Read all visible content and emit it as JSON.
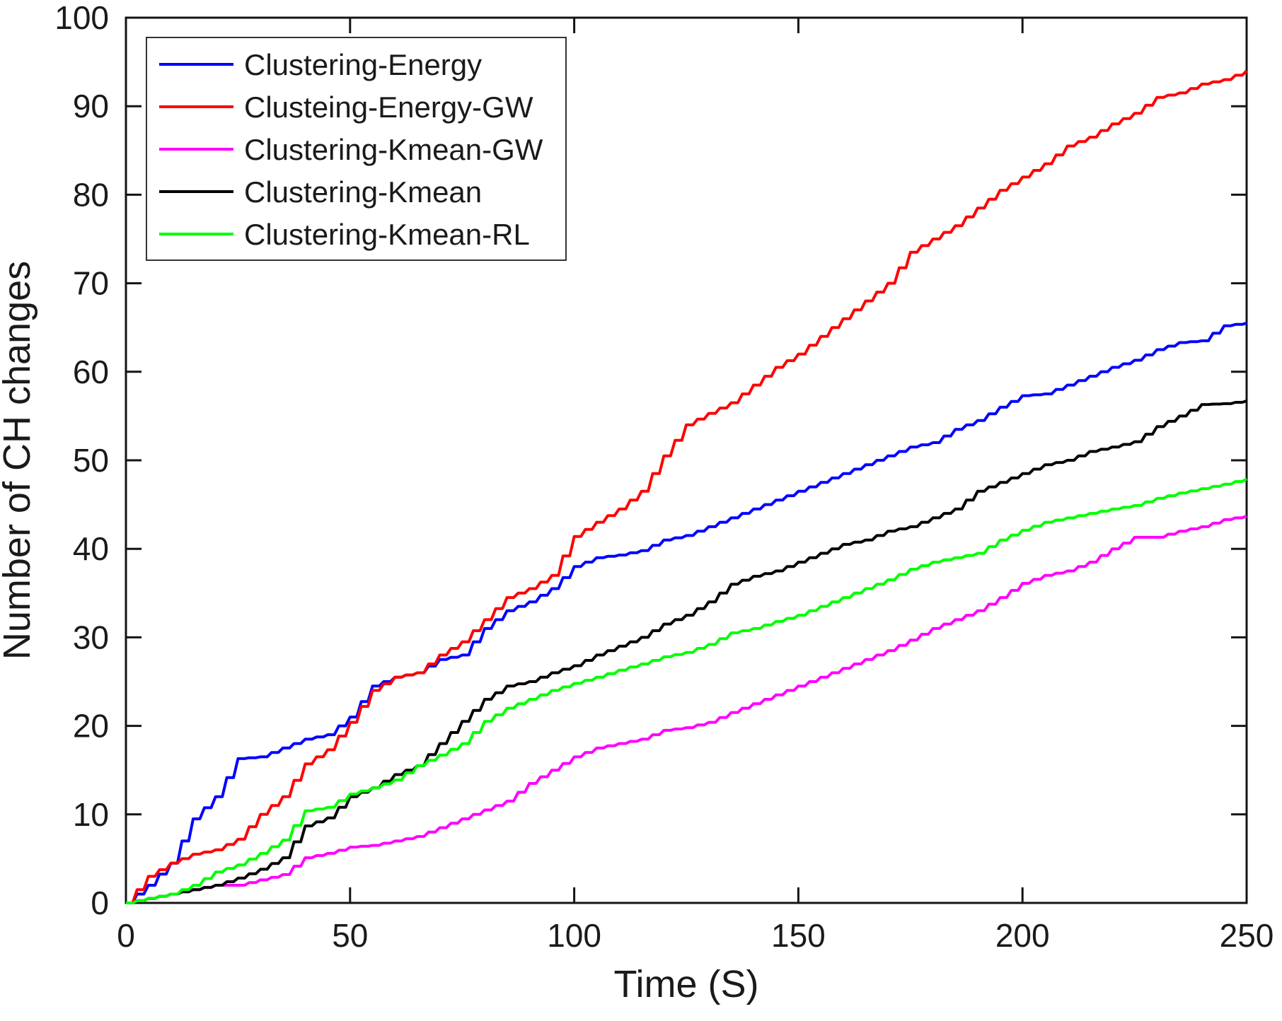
{
  "figure": {
    "background": "#ffffff",
    "axis_color": "#141414",
    "text_color": "#1a1a1a"
  },
  "chart_data": {
    "type": "line",
    "title": "",
    "xlabel": "Time (S)",
    "ylabel": "Number of CH changes",
    "xlim": [
      0,
      250
    ],
    "ylim": [
      0,
      100
    ],
    "x_ticks": [
      0,
      50,
      100,
      150,
      200,
      250
    ],
    "y_ticks": [
      0,
      10,
      20,
      30,
      40,
      50,
      60,
      70,
      80,
      90,
      100
    ],
    "grid": false,
    "legend_position": "top-left",
    "x": [
      0,
      5,
      10,
      15,
      20,
      25,
      30,
      35,
      40,
      45,
      50,
      55,
      60,
      65,
      70,
      75,
      80,
      85,
      90,
      95,
      100,
      105,
      110,
      115,
      120,
      125,
      130,
      135,
      140,
      145,
      150,
      155,
      160,
      165,
      170,
      175,
      180,
      185,
      190,
      195,
      200,
      205,
      210,
      215,
      220,
      225,
      230,
      235,
      240,
      245,
      250
    ],
    "series": [
      {
        "name": "Clustering-Energy",
        "color": "#0000ff",
        "values": [
          0,
          2,
          4.5,
          9.5,
          12,
          16.3,
          16.5,
          17.5,
          18.5,
          19,
          21,
          24.5,
          25.5,
          26,
          27.5,
          28,
          31,
          33,
          34,
          35.5,
          38,
          39,
          39.3,
          39.8,
          41,
          41.5,
          42.5,
          43.5,
          44.5,
          45.5,
          46.5,
          47.5,
          48.5,
          49.5,
          50.5,
          51.5,
          52,
          53.5,
          54.5,
          56,
          57.3,
          57.5,
          58.5,
          59.5,
          60.5,
          61.3,
          62.5,
          63.3,
          63.5,
          65.2,
          65.5
        ]
      },
      {
        "name": "Clusteing-Energy-GW",
        "color": "#ff0000",
        "values": [
          0,
          3,
          4.5,
          5.5,
          6,
          7.2,
          10,
          12,
          15.7,
          17.3,
          20.4,
          24,
          25.5,
          26,
          28,
          29.5,
          32,
          34.5,
          35.5,
          37,
          41.4,
          43,
          44.5,
          46.5,
          50.5,
          54,
          55.3,
          56.5,
          58.5,
          60.5,
          62,
          64,
          66,
          68,
          70,
          73.5,
          75,
          76.5,
          78.5,
          80.5,
          82,
          83.5,
          85.5,
          86.5,
          88,
          89.2,
          91,
          91.5,
          92.5,
          93,
          94
        ]
      },
      {
        "name": "Clustering-Kmean-GW",
        "color": "#ff00ff",
        "values": [
          0,
          0.5,
          1,
          1.5,
          2,
          2,
          2.6,
          3.2,
          5.1,
          5.6,
          6.3,
          6.5,
          7,
          7.5,
          8.5,
          9.5,
          10.5,
          11.5,
          13.5,
          15,
          16.5,
          17.5,
          18,
          18.5,
          19.5,
          19.8,
          20.4,
          21.5,
          22.5,
          23.5,
          24.5,
          25.5,
          26.5,
          27.5,
          28.5,
          29.7,
          31,
          32,
          33,
          34.5,
          36.1,
          37,
          37.5,
          38.5,
          40,
          41.3,
          41.3,
          42,
          42.5,
          43.3,
          43.7
        ]
      },
      {
        "name": "Clustering-Kmean",
        "color": "#000000",
        "values": [
          0,
          0.5,
          1,
          1.5,
          2,
          2.8,
          3.8,
          5.1,
          8.7,
          9.6,
          12,
          13,
          14.5,
          15.5,
          18,
          20.5,
          23,
          24.5,
          25,
          26,
          26.8,
          28,
          29,
          30,
          31.5,
          32.5,
          34,
          36,
          36.9,
          37.5,
          38.5,
          39.5,
          40.5,
          41,
          42,
          42.5,
          43.5,
          44.5,
          46.5,
          47.5,
          48.5,
          49.5,
          50,
          51,
          51.5,
          52.1,
          53.8,
          55,
          56.3,
          56.4,
          56.7
        ]
      },
      {
        "name": "Clustering-Kmean-RL",
        "color": "#00ff00",
        "values": [
          0,
          0.5,
          1,
          2,
          3.5,
          4.3,
          5.6,
          7.1,
          10.4,
          10.8,
          12.3,
          13,
          13.9,
          15.5,
          16.7,
          18,
          20.5,
          22,
          23,
          24,
          24.8,
          25.5,
          26.3,
          27,
          27.8,
          28.3,
          29.2,
          30.5,
          31,
          31.8,
          32.5,
          33.5,
          34.5,
          35.5,
          36.5,
          37.7,
          38.5,
          39,
          39.5,
          41,
          42.1,
          43,
          43.5,
          44,
          44.5,
          44.9,
          45.7,
          46.3,
          46.8,
          47.3,
          47.9
        ]
      }
    ]
  }
}
